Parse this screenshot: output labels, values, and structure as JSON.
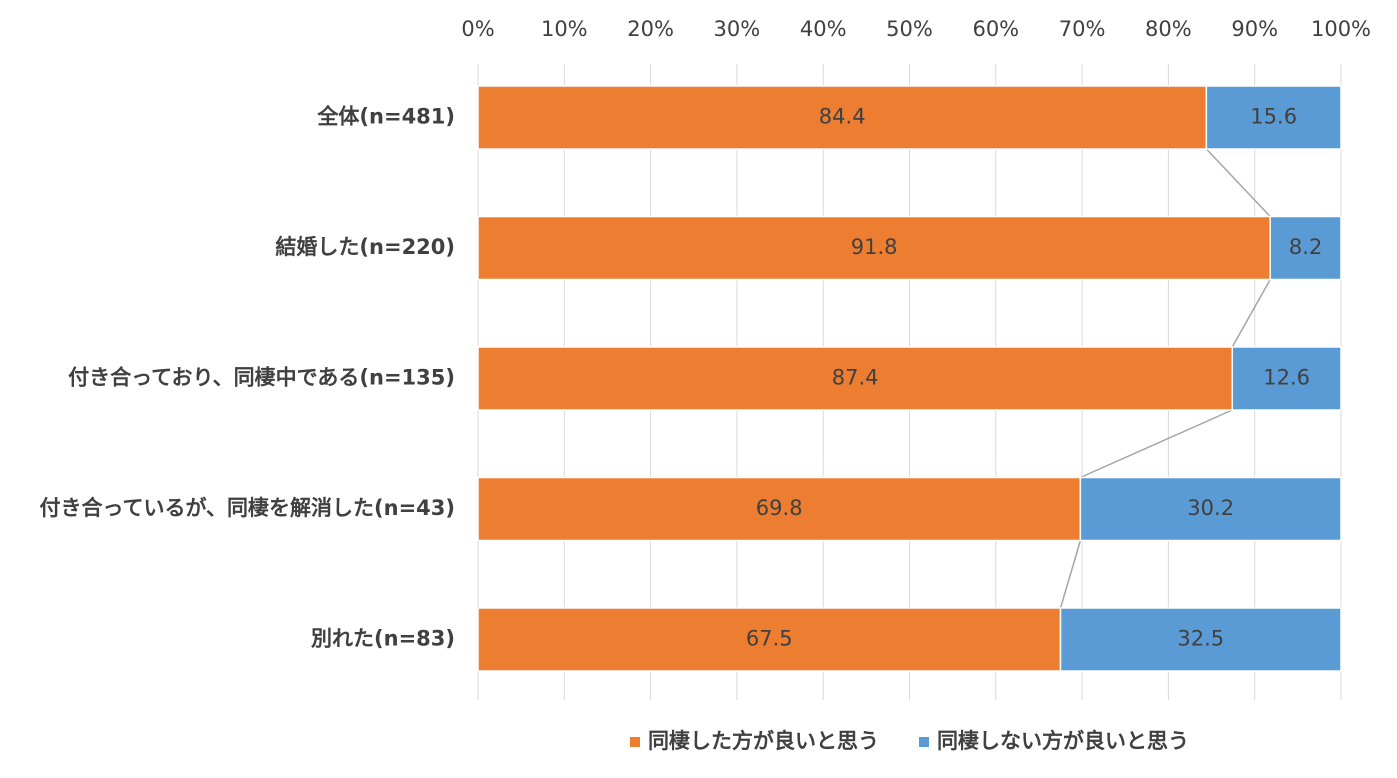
{
  "chart_data": {
    "type": "bar",
    "orientation": "horizontal",
    "stacked": "percent",
    "categories": [
      "全体(n=481)",
      "結婚した(n=220)",
      "付き合っており、同棲中である(n=135)",
      "付き合っているが、同棲を解消した(n=43)",
      "別れた(n=83)"
    ],
    "series": [
      {
        "name": "同棲した方が良いと思う",
        "values": [
          84.4,
          91.8,
          87.4,
          69.8,
          67.5
        ],
        "color": "#ED7D31"
      },
      {
        "name": "同棲しない方が良いと思う",
        "values": [
          15.6,
          8.2,
          12.6,
          30.2,
          32.5
        ],
        "color": "#5B9BD5"
      }
    ],
    "x_ticks": [
      "0%",
      "10%",
      "20%",
      "30%",
      "40%",
      "50%",
      "60%",
      "70%",
      "80%",
      "90%",
      "100%"
    ],
    "xlim": [
      0,
      100
    ],
    "x_axis_position": "top",
    "grid": true,
    "series_lines": true,
    "legend_position": "bottom",
    "title": "",
    "xlabel": "",
    "ylabel": ""
  }
}
